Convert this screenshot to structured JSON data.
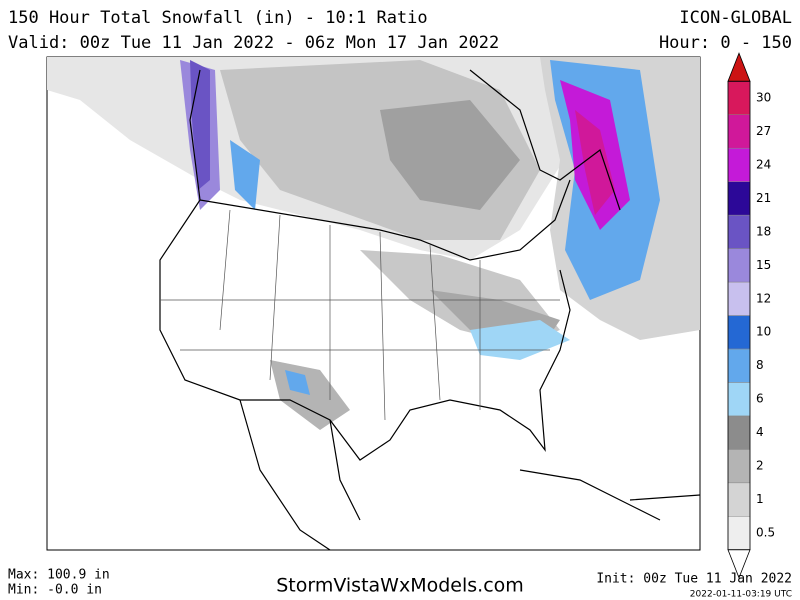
{
  "header": {
    "title": "150 Hour Total Snowfall (in) - 10:1 Ratio",
    "valid": "Valid: 00z Tue 11 Jan 2022 - 06z Mon 17 Jan 2022",
    "model": "ICON-GLOBAL",
    "hours": "Hour: 0 - 150"
  },
  "legend": {
    "levels": [
      {
        "label": "0.5",
        "color": "#eeeeee"
      },
      {
        "label": "1",
        "color": "#d4d4d4"
      },
      {
        "label": "2",
        "color": "#b4b4b4"
      },
      {
        "label": "4",
        "color": "#8c8c8c"
      },
      {
        "label": "6",
        "color": "#9fd6f6"
      },
      {
        "label": "8",
        "color": "#62a8ec"
      },
      {
        "label": "10",
        "color": "#2468d4"
      },
      {
        "label": "12",
        "color": "#c8c0ee"
      },
      {
        "label": "15",
        "color": "#9a88dc"
      },
      {
        "label": "18",
        "color": "#6a54c4"
      },
      {
        "label": "21",
        "color": "#2c0898"
      },
      {
        "label": "24",
        "color": "#c41ad8"
      },
      {
        "label": "27",
        "color": "#d0189a"
      },
      {
        "label": "30",
        "color": "#d8185c"
      }
    ],
    "top_color": "#cc1414"
  },
  "footer": {
    "max": "Max: 100.9 in",
    "min": "Min: -0.0 in",
    "site": "StormVistaWxModels.com",
    "init": "Init: 00z Tue 11 Jan 2022",
    "timestamp": "2022-01-11-03:19 UTC"
  }
}
